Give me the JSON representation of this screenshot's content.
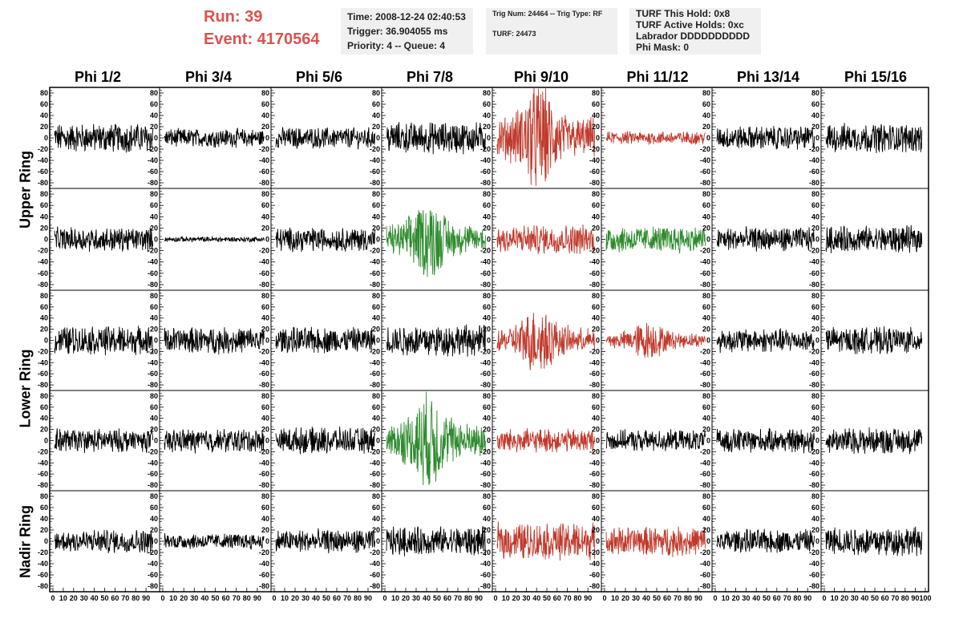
{
  "header": {
    "run_label": "Run:    39",
    "event_label": "Event: 4170564",
    "time_box": {
      "line1": "Time: 2008-12-24 02:40:53",
      "line2": "Trigger: 36.904055 ms",
      "line3": "Priority: 4 -- Queue: 4"
    },
    "trig_box": {
      "line1": "Trig Num: 24464 -- Trig Type: RF",
      "line2": "TURF: 24473"
    },
    "turf_box": {
      "line1": "TURF This Hold: 0x8",
      "line2": "TURF Active Holds: 0xc",
      "line3": "Labrador DDDDDDDDDD",
      "line4": "Phi Mask: 0"
    }
  },
  "columns": [
    "Phi 1/2",
    "Phi 3/4",
    "Phi 5/6",
    "Phi 7/8",
    "Phi 9/10",
    "Phi 11/12",
    "Phi 13/14",
    "Phi 15/16"
  ],
  "row_labels": [
    "Upper Ring",
    "Lower Ring",
    "Nadir Ring"
  ],
  "colors": {
    "normal": "#000000",
    "red": "#c0392b",
    "green": "#2e8b2e"
  },
  "chart_data": {
    "type": "line",
    "grid": false,
    "xlim": [
      0,
      100
    ],
    "ylim": [
      -90,
      90
    ],
    "y_ticks": [
      -80,
      -60,
      -40,
      -20,
      0,
      20,
      40,
      60,
      80
    ],
    "x_ticks": [
      0,
      10,
      20,
      30,
      40,
      50,
      60,
      70,
      80,
      90,
      100
    ],
    "rows": 5,
    "cols": 8,
    "panel_color": [
      [
        "normal",
        "normal",
        "normal",
        "normal",
        "red",
        "red",
        "normal",
        "normal"
      ],
      [
        "normal",
        "normal",
        "normal",
        "green",
        "red",
        "green",
        "normal",
        "normal"
      ],
      [
        "normal",
        "normal",
        "normal",
        "normal",
        "red",
        "red",
        "normal",
        "normal"
      ],
      [
        "normal",
        "normal",
        "normal",
        "green",
        "red",
        "normal",
        "normal",
        "normal"
      ],
      [
        "normal",
        "normal",
        "normal",
        "normal",
        "red",
        "red",
        "normal",
        "normal"
      ]
    ],
    "panel_amplitude": [
      [
        22,
        14,
        16,
        24,
        45,
        10,
        18,
        22
      ],
      [
        18,
        4,
        18,
        32,
        22,
        20,
        18,
        20
      ],
      [
        22,
        20,
        20,
        24,
        28,
        16,
        18,
        20
      ],
      [
        18,
        18,
        20,
        40,
        18,
        16,
        18,
        20
      ],
      [
        18,
        12,
        18,
        22,
        28,
        22,
        18,
        22
      ]
    ],
    "panel_burst": [
      [
        0,
        0,
        0,
        0,
        1,
        0,
        0,
        0
      ],
      [
        0,
        0,
        0,
        1,
        0,
        0,
        0,
        0
      ],
      [
        0,
        0,
        0,
        0,
        1,
        1,
        0,
        0
      ],
      [
        0,
        0,
        0,
        1,
        0,
        0,
        0,
        0
      ],
      [
        0,
        0,
        0,
        0,
        0,
        0,
        0,
        0
      ]
    ]
  }
}
